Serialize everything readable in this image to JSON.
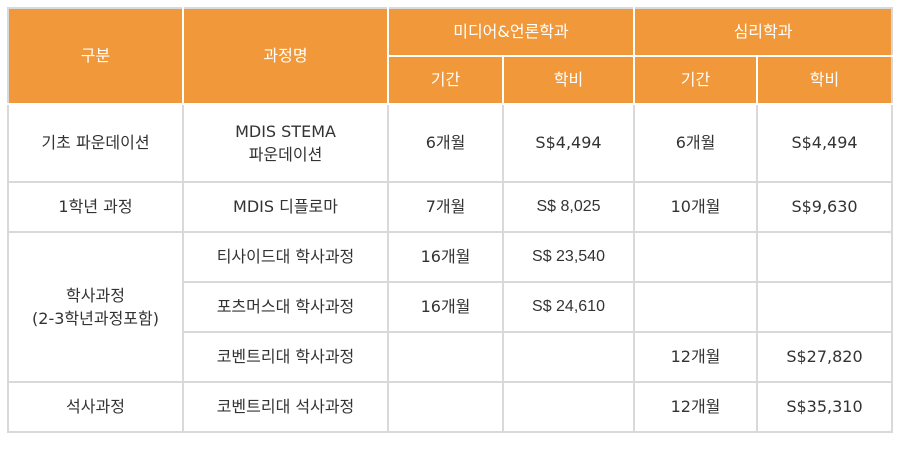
{
  "header": {
    "category": "구분",
    "program_name": "과정명",
    "dept_media": "미디어&언론학과",
    "dept_psych": "심리학과",
    "duration": "기간",
    "fee": "학비"
  },
  "rows": [
    {
      "category": "기초 파운데이션",
      "program_line1": "MDIS STEMA",
      "program_line2": "파운데이션",
      "media_duration": "6개월",
      "media_fee": "S$4,494",
      "psych_duration": "6개월",
      "psych_fee": "S$4,494"
    },
    {
      "category": "1학년 과정",
      "program": "MDIS 디플로마",
      "media_duration": "7개월",
      "media_fee": "S$ 8,025",
      "psych_duration": "10개월",
      "psych_fee": "S$9,630"
    },
    {
      "category_line1": "학사과정",
      "category_line2": "(2-3학년과정포함)",
      "program": "티사이드대 학사과정",
      "media_duration": "16개월",
      "media_fee": "S$ 23,540",
      "psych_duration": "",
      "psych_fee": ""
    },
    {
      "program": "포츠머스대 학사과정",
      "media_duration": "16개월",
      "media_fee": "S$ 24,610",
      "psych_duration": "",
      "psych_fee": ""
    },
    {
      "program": "코벤트리대 학사과정",
      "media_duration": "",
      "media_fee": "",
      "psych_duration": "12개월",
      "psych_fee": "S$27,820"
    },
    {
      "category": "석사과정",
      "program": "코벤트리대 석사과정",
      "media_duration": "",
      "media_fee": "",
      "psych_duration": "12개월",
      "psych_fee": "S$35,310"
    }
  ]
}
